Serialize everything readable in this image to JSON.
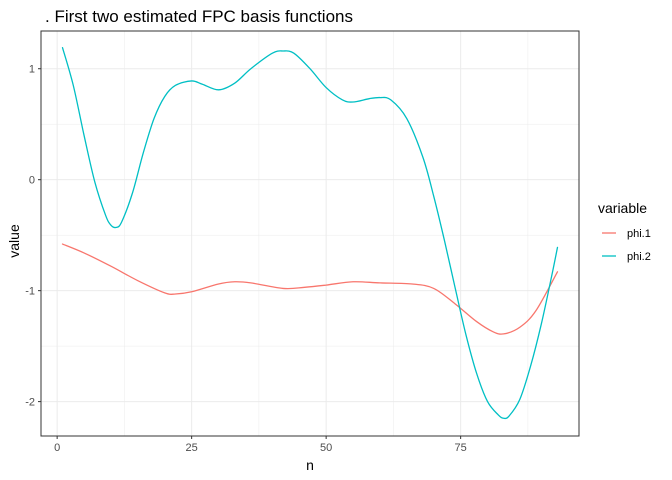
{
  "chart_data": {
    "type": "line",
    "title": ". First two estimated FPC basis functions",
    "xlabel": "n",
    "ylabel": "value",
    "xlim": [
      -3,
      97
    ],
    "ylim": [
      -2.31,
      1.34
    ],
    "xticks": [
      0,
      25,
      50,
      75
    ],
    "yticks": [
      1,
      0,
      -1,
      -2
    ],
    "xtick_labels": [
      "0",
      "25",
      "50",
      "75"
    ],
    "ytick_labels": [
      "1",
      "0",
      "-1",
      "-2"
    ],
    "grid": true,
    "legend": {
      "title": "variable",
      "position": "right"
    },
    "series": [
      {
        "name": "phi.1",
        "color": "#F8766D",
        "points": [
          [
            1,
            -0.58
          ],
          [
            5,
            -0.66
          ],
          [
            10,
            -0.78
          ],
          [
            15,
            -0.91
          ],
          [
            20,
            -1.02
          ],
          [
            22,
            -1.03
          ],
          [
            25,
            -1.01
          ],
          [
            30,
            -0.94
          ],
          [
            33,
            -0.92
          ],
          [
            36,
            -0.93
          ],
          [
            42,
            -0.98
          ],
          [
            46,
            -0.97
          ],
          [
            50,
            -0.95
          ],
          [
            55,
            -0.92
          ],
          [
            60,
            -0.93
          ],
          [
            66,
            -0.94
          ],
          [
            70,
            -0.98
          ],
          [
            74,
            -1.12
          ],
          [
            78,
            -1.28
          ],
          [
            81,
            -1.37
          ],
          [
            83,
            -1.39
          ],
          [
            86,
            -1.33
          ],
          [
            89,
            -1.18
          ],
          [
            93,
            -0.83
          ]
        ]
      },
      {
        "name": "phi.2",
        "color": "#00BFC4",
        "points": [
          [
            1,
            1.19
          ],
          [
            3,
            0.85
          ],
          [
            5,
            0.4
          ],
          [
            7,
            -0.02
          ],
          [
            9,
            -0.32
          ],
          [
            10,
            -0.41
          ],
          [
            11,
            -0.43
          ],
          [
            12,
            -0.38
          ],
          [
            14,
            -0.12
          ],
          [
            16,
            0.24
          ],
          [
            18,
            0.55
          ],
          [
            20,
            0.75
          ],
          [
            22,
            0.85
          ],
          [
            25,
            0.89
          ],
          [
            27,
            0.86
          ],
          [
            30,
            0.81
          ],
          [
            33,
            0.87
          ],
          [
            36,
            1.0
          ],
          [
            40,
            1.14
          ],
          [
            42,
            1.16
          ],
          [
            44,
            1.14
          ],
          [
            47,
            1.0
          ],
          [
            50,
            0.83
          ],
          [
            53,
            0.72
          ],
          [
            55,
            0.7
          ],
          [
            58,
            0.73
          ],
          [
            60,
            0.74
          ],
          [
            62,
            0.72
          ],
          [
            65,
            0.55
          ],
          [
            68,
            0.2
          ],
          [
            70,
            -0.15
          ],
          [
            72,
            -0.55
          ],
          [
            74,
            -0.98
          ],
          [
            76,
            -1.4
          ],
          [
            78,
            -1.75
          ],
          [
            80,
            -2.0
          ],
          [
            82,
            -2.12
          ],
          [
            83,
            -2.15
          ],
          [
            84,
            -2.13
          ],
          [
            86,
            -1.98
          ],
          [
            88,
            -1.68
          ],
          [
            90,
            -1.3
          ],
          [
            92,
            -0.85
          ],
          [
            93,
            -0.61
          ]
        ]
      }
    ]
  }
}
